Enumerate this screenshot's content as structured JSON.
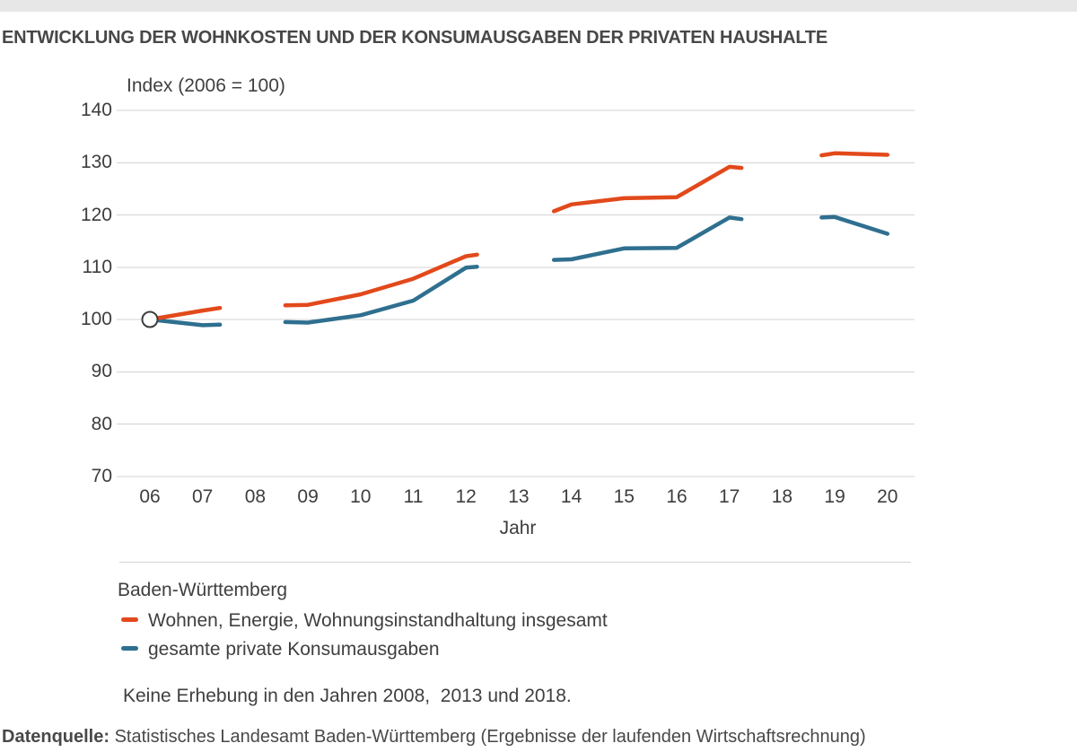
{
  "chart_data": {
    "type": "line",
    "title": "ENTWICKLUNG DER WOHNKOSTEN UND DER KONSUMAUSGABEN DER PRIVATEN HAUSHALTE",
    "index_label": "Index (2006 = 100)",
    "xlabel": "Jahr",
    "x_ticks": [
      "06",
      "07",
      "08",
      "09",
      "10",
      "11",
      "12",
      "13",
      "14",
      "15",
      "16",
      "17",
      "18",
      "19",
      "20"
    ],
    "y_ticks": [
      140,
      130,
      120,
      110,
      100,
      90,
      80,
      70
    ],
    "ylim": [
      70,
      140
    ],
    "grid": "horizontal",
    "legend_position": "below",
    "region": "Baden-Württemberg",
    "missing_years": [
      2008,
      2013,
      2018
    ],
    "note": "Keine Erhebung in den Jahren 2008,  2013 und 2018.",
    "start_marker": {
      "year": 2006,
      "value": 100
    },
    "series": [
      {
        "name": "Wohnen, Energie, Wohnungsinstandhaltung insgesamt",
        "color": "#e2491b",
        "years": [
          2006,
          2007,
          2009,
          2010,
          2011,
          2012,
          2014,
          2015,
          2016,
          2017,
          2019,
          2020
        ],
        "values": [
          100,
          101.7,
          102.8,
          104.8,
          107.8,
          112.1,
          122.0,
          123.2,
          123.4,
          129.2,
          131.8,
          131.5
        ],
        "segments": [
          [
            [
              2006,
              100
            ],
            [
              2007,
              101.7
            ],
            [
              2007.33,
              102.2
            ]
          ],
          [
            [
              2008.57,
              102.7
            ],
            [
              2009,
              102.8
            ],
            [
              2010,
              104.8
            ],
            [
              2011,
              107.8
            ],
            [
              2012,
              112.1
            ],
            [
              2012.21,
              112.4
            ]
          ],
          [
            [
              2013.67,
              120.7
            ],
            [
              2014,
              122.0
            ],
            [
              2015,
              123.2
            ],
            [
              2016,
              123.4
            ],
            [
              2017,
              129.2
            ],
            [
              2017.23,
              129.0
            ]
          ],
          [
            [
              2018.75,
              131.4
            ],
            [
              2019,
              131.8
            ],
            [
              2020,
              131.5
            ]
          ]
        ]
      },
      {
        "name": "gesamte private Konsumausgaben",
        "color": "#2f6f8f",
        "years": [
          2006,
          2007,
          2009,
          2010,
          2011,
          2012,
          2014,
          2015,
          2016,
          2017,
          2019,
          2020
        ],
        "values": [
          100,
          98.9,
          99.4,
          100.8,
          103.6,
          109.9,
          111.5,
          113.6,
          113.7,
          119.5,
          119.6,
          116.4
        ],
        "segments": [
          [
            [
              2006,
              100
            ],
            [
              2007,
              98.9
            ],
            [
              2007.33,
              99.0
            ]
          ],
          [
            [
              2008.57,
              99.5
            ],
            [
              2009,
              99.4
            ],
            [
              2010,
              100.8
            ],
            [
              2011,
              103.6
            ],
            [
              2012,
              109.9
            ],
            [
              2012.21,
              110.1
            ]
          ],
          [
            [
              2013.67,
              111.4
            ],
            [
              2014,
              111.5
            ],
            [
              2015,
              113.6
            ],
            [
              2016,
              113.7
            ],
            [
              2017,
              119.5
            ],
            [
              2017.23,
              119.2
            ]
          ],
          [
            [
              2018.75,
              119.5
            ],
            [
              2019,
              119.6
            ],
            [
              2020,
              116.4
            ]
          ]
        ]
      }
    ],
    "colors": {
      "gridline": "#d3d3d3",
      "marker_stroke": "#3d3d3d",
      "marker_fill": "#ffffff",
      "top_bar": "#e7e7e7"
    }
  },
  "footer": {
    "label": "Datenquelle:",
    "text": " Statistisches Landesamt Baden-Württemberg (Ergebnisse der laufenden Wirtschaftsrechnung)"
  }
}
